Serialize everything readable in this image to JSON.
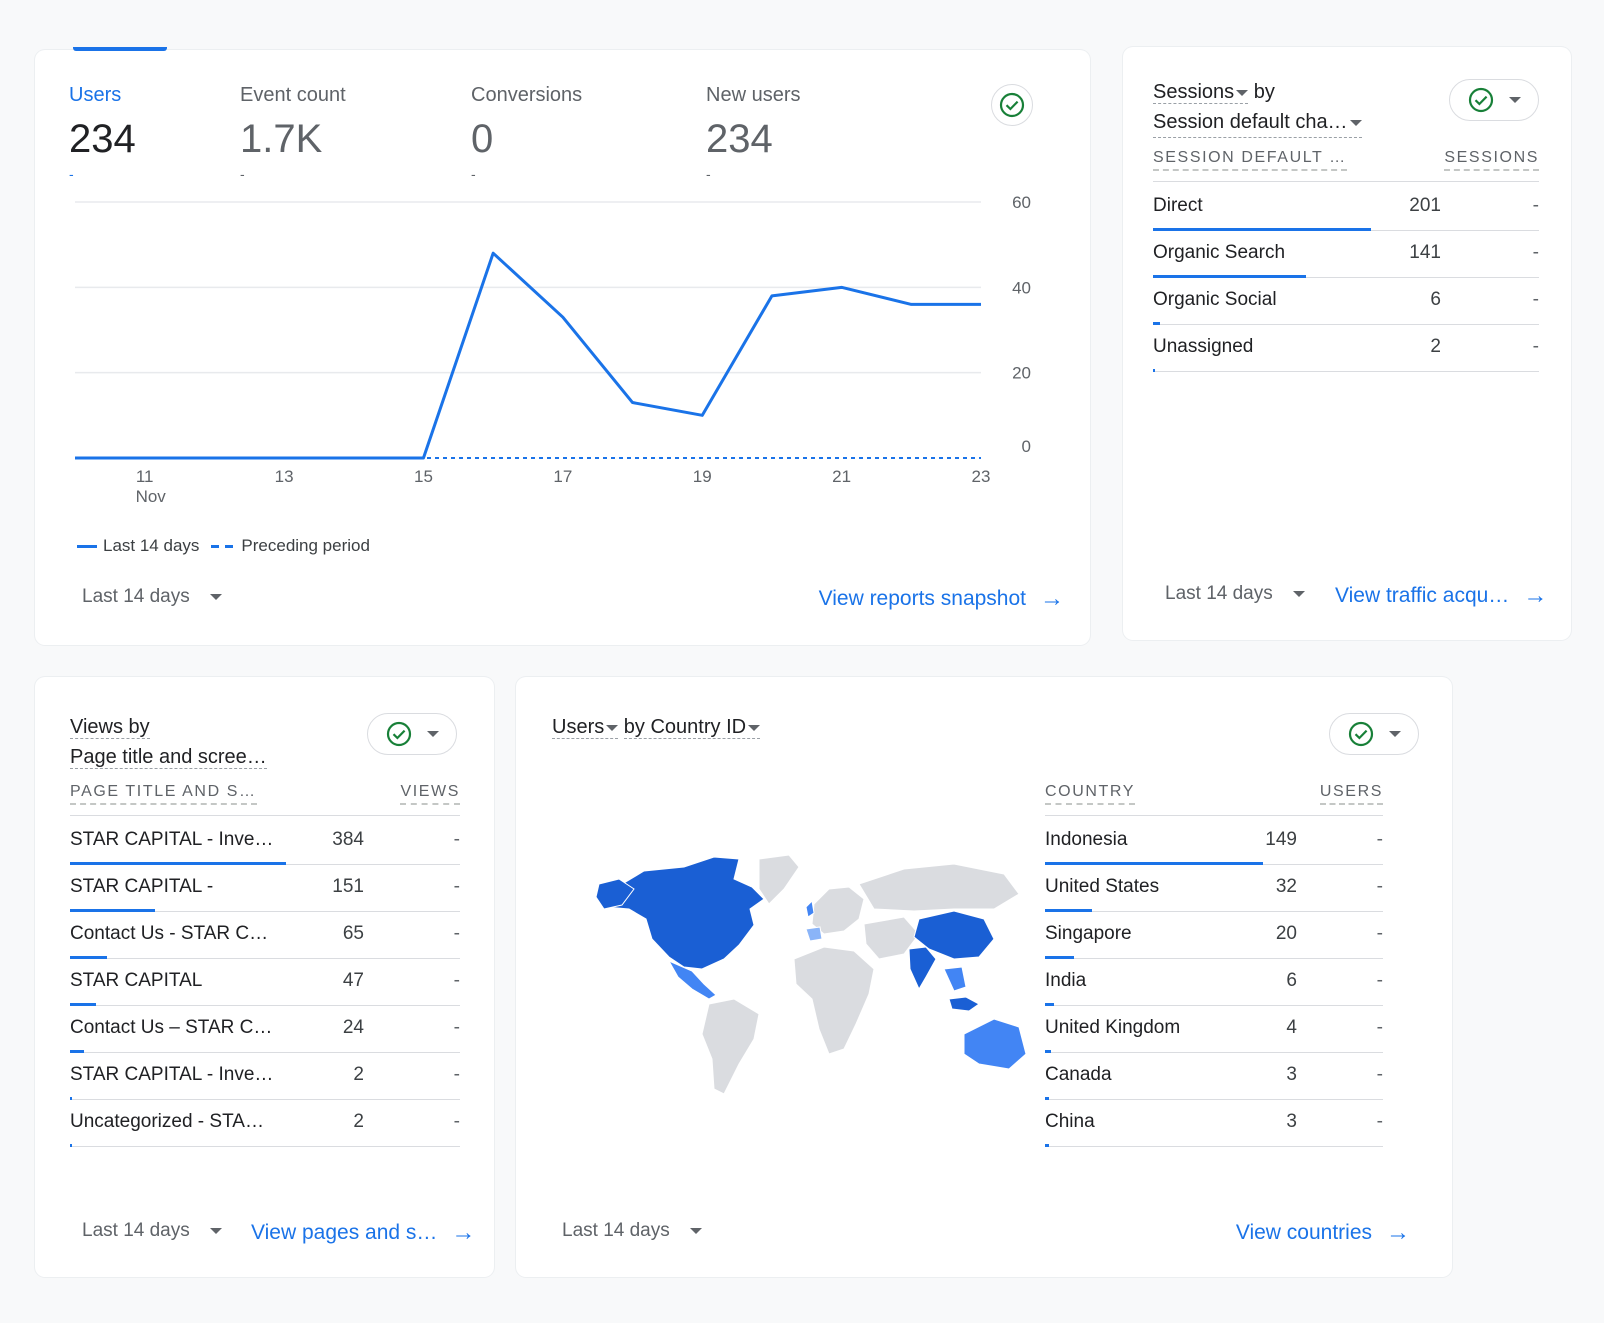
{
  "metrics_card": {
    "metrics": [
      {
        "label": "Users",
        "value": "234",
        "delta": "-"
      },
      {
        "label": "Event count",
        "value": "1.7K",
        "delta": "-"
      },
      {
        "label": "Conversions",
        "value": "0",
        "delta": "-"
      },
      {
        "label": "New users",
        "value": "234",
        "delta": "-"
      }
    ],
    "legend": {
      "current": "Last 14 days",
      "previous": "Preceding period"
    },
    "date_range": "Last 14 days",
    "link": "View reports snapshot",
    "chart_data": {
      "type": "line",
      "x": [
        "10 Nov",
        "11 Nov",
        "12 Nov",
        "13 Nov",
        "14 Nov",
        "15 Nov",
        "16 Nov",
        "17 Nov",
        "18 Nov",
        "19 Nov",
        "20 Nov",
        "21 Nov",
        "22 Nov",
        "23 Nov"
      ],
      "x_tick_labels": [
        "11",
        "13",
        "15",
        "17",
        "19",
        "21",
        "23"
      ],
      "x_tick_sublabel": "Nov",
      "series": [
        {
          "name": "Last 14 days",
          "values": [
            0,
            0,
            0,
            0,
            0,
            0,
            48,
            33,
            13,
            10,
            38,
            40,
            36,
            36
          ],
          "style": "solid"
        },
        {
          "name": "Preceding period",
          "values": [
            0,
            0,
            0,
            0,
            0,
            0,
            0,
            0,
            0,
            0,
            0,
            0,
            0,
            0
          ],
          "style": "dashed"
        }
      ],
      "y_ticks": [
        0,
        20,
        40,
        60
      ],
      "ylim": [
        0,
        60
      ],
      "grid": true,
      "axis_position": "right",
      "color": "#1a73e8"
    }
  },
  "sessions_card": {
    "title_metric": "Sessions",
    "title_by": "by",
    "title_dim": "Session default cha…",
    "col_dim": "SESSION DEFAULT …",
    "col_metric": "SESSIONS",
    "rows": [
      {
        "name": "Direct",
        "value": 201,
        "value_text": "201",
        "delta": "-"
      },
      {
        "name": "Organic Search",
        "value": 141,
        "value_text": "141",
        "delta": "-"
      },
      {
        "name": "Organic Social",
        "value": 6,
        "value_text": "6",
        "delta": "-"
      },
      {
        "name": "Unassigned",
        "value": 2,
        "value_text": "2",
        "delta": "-"
      }
    ],
    "date_range": "Last 14 days",
    "link": "View traffic acqu…"
  },
  "pages_card": {
    "title_line1": "Views by",
    "title_line2": "Page title and scree…",
    "col_dim": "PAGE TITLE AND S…",
    "col_metric": "VIEWS",
    "rows": [
      {
        "name": "STAR CAPITAL - Inve…",
        "value": 384,
        "value_text": "384",
        "delta": "-"
      },
      {
        "name": "STAR CAPITAL -",
        "value": 151,
        "value_text": "151",
        "delta": "-"
      },
      {
        "name": "Contact Us - STAR C…",
        "value": 65,
        "value_text": "65",
        "delta": "-"
      },
      {
        "name": "STAR CAPITAL",
        "value": 47,
        "value_text": "47",
        "delta": "-"
      },
      {
        "name": "Contact Us – STAR C…",
        "value": 24,
        "value_text": "24",
        "delta": "-"
      },
      {
        "name": "STAR CAPITAL - Inve…",
        "value": 2,
        "value_text": "2",
        "delta": "-"
      },
      {
        "name": "Uncategorized - STA…",
        "value": 2,
        "value_text": "2",
        "delta": "-"
      }
    ],
    "date_range": "Last 14 days",
    "link": "View pages and s…"
  },
  "country_card": {
    "title_metric": "Users",
    "title_by": "by Country ID",
    "col_dim": "COUNTRY",
    "col_metric": "USERS",
    "rows": [
      {
        "name": "Indonesia",
        "value": 149,
        "value_text": "149",
        "delta": "-"
      },
      {
        "name": "United States",
        "value": 32,
        "value_text": "32",
        "delta": "-"
      },
      {
        "name": "Singapore",
        "value": 20,
        "value_text": "20",
        "delta": "-"
      },
      {
        "name": "India",
        "value": 6,
        "value_text": "6",
        "delta": "-"
      },
      {
        "name": "United Kingdom",
        "value": 4,
        "value_text": "4",
        "delta": "-"
      },
      {
        "name": "Canada",
        "value": 3,
        "value_text": "3",
        "delta": "-"
      },
      {
        "name": "China",
        "value": 3,
        "value_text": "3",
        "delta": "-"
      }
    ],
    "map_colors": {
      "high": "#1a5fd4",
      "mid": "#4285f4",
      "low": "#8ab4f8",
      "none": "#dadce0"
    },
    "date_range": "Last 14 days",
    "link": "View countries"
  }
}
